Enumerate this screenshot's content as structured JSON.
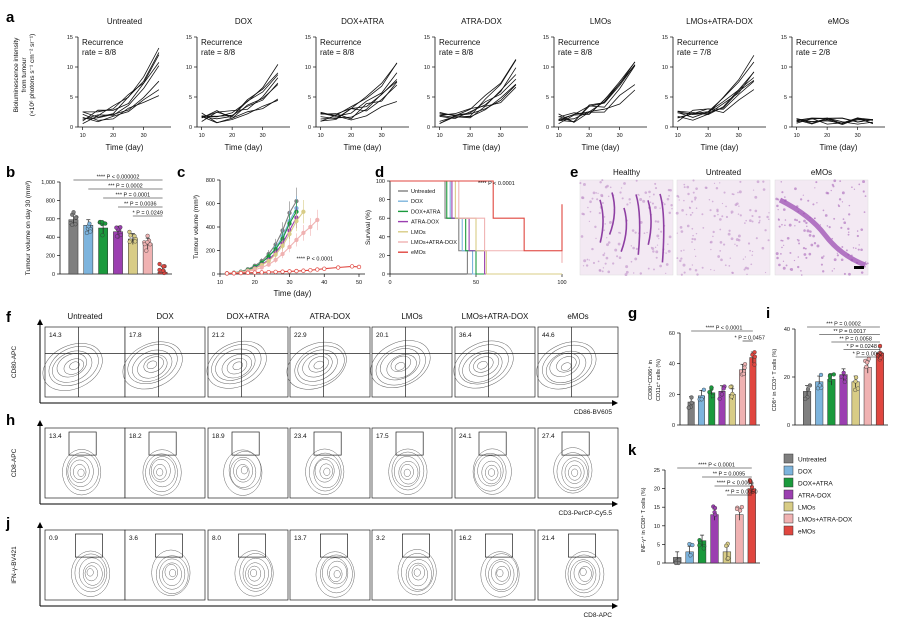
{
  "panels": {
    "a": "a",
    "b": "b",
    "c": "c",
    "d": "d",
    "e": "e",
    "f": "f",
    "g": "g",
    "h": "h",
    "i": "i",
    "j": "j",
    "k": "k"
  },
  "groups": [
    "Untreated",
    "DOX",
    "DOX+ATRA",
    "ATRA-DOX",
    "LMOs",
    "LMOs+ATRA-DOX",
    "eMOs"
  ],
  "group_colors": [
    "#7f7f7f",
    "#7db4dd",
    "#1a9a3c",
    "#9b3fb0",
    "#d8cc86",
    "#f0b2b2",
    "#e0463f"
  ],
  "panel_a": {
    "ylabel_1": "Bioluminescence intensity",
    "ylabel_2": "from tumour",
    "ylabel_3": "(×10⁶ photons s⁻¹ cm⁻² sr⁻¹)",
    "xlabel": "Time (day)",
    "recurrence_word": "Recurrence",
    "rates": [
      "rate = 8/8",
      "rate = 8/8",
      "rate = 8/8",
      "rate = 8/8",
      "rate = 8/8",
      "rate = 7/8",
      "rate = 2/8"
    ],
    "yticks": [
      "0",
      "5",
      "10",
      "15"
    ],
    "xticks": [
      "10",
      "20",
      "30"
    ]
  },
  "chart_data": [
    {
      "panel": "b",
      "type": "bar",
      "categories": [
        "Untreated",
        "DOX",
        "DOX+ATRA",
        "ATRA-DOX",
        "LMOs",
        "LMOs+ATRA-DOX",
        "eMOs"
      ],
      "values": [
        590,
        530,
        500,
        460,
        380,
        330,
        20
      ],
      "ylabel": "Tumour volume on day 30 (mm³)",
      "ylim": [
        0,
        1000
      ],
      "yticks": [
        "0",
        "200",
        "400",
        "600",
        "800",
        "1,000"
      ],
      "annotations": [
        "**** P < 0.000002",
        "*** P = 0.0002",
        "*** P = 0.0001",
        "** P = 0.0036",
        "* P = 0.0249"
      ]
    },
    {
      "panel": "c",
      "type": "line",
      "xlabel": "Time (day)",
      "ylabel": "Tumour volume (mm³)",
      "xlim": [
        10,
        50
      ],
      "ylim": [
        0,
        800
      ],
      "xticks": [
        "10",
        "20",
        "30",
        "40",
        "50"
      ],
      "yticks": [
        "0",
        "200",
        "400",
        "600",
        "800"
      ],
      "x": [
        12,
        14,
        16,
        18,
        20,
        22,
        24,
        26,
        28,
        30,
        32,
        34,
        36,
        38,
        40,
        44,
        48,
        50
      ],
      "series": [
        {
          "values": [
            5,
            10,
            20,
            40,
            70,
            110,
            170,
            250,
            370,
            520,
            620,
            null,
            null,
            null,
            null,
            null,
            null,
            null
          ]
        },
        {
          "values": [
            5,
            10,
            18,
            35,
            60,
            95,
            150,
            220,
            320,
            450,
            560,
            null,
            null,
            null,
            null,
            null,
            null,
            null
          ]
        },
        {
          "values": [
            5,
            10,
            18,
            35,
            60,
            95,
            150,
            210,
            300,
            430,
            530,
            null,
            null,
            null,
            null,
            null,
            null,
            null
          ]
        },
        {
          "values": [
            5,
            9,
            15,
            30,
            50,
            80,
            120,
            180,
            260,
            370,
            480,
            null,
            null,
            null,
            null,
            null,
            null,
            null
          ]
        },
        {
          "values": [
            5,
            9,
            15,
            28,
            45,
            75,
            110,
            165,
            240,
            340,
            450,
            530,
            null,
            null,
            null,
            null,
            null,
            null
          ]
        },
        {
          "values": [
            5,
            8,
            12,
            22,
            35,
            55,
            80,
            120,
            170,
            230,
            290,
            350,
            400,
            460,
            null,
            null,
            null,
            null
          ]
        },
        {
          "values": [
            5,
            6,
            8,
            10,
            12,
            14,
            16,
            18,
            20,
            22,
            25,
            28,
            32,
            38,
            45,
            55,
            65,
            60
          ]
        }
      ],
      "annotation": "**** P < 0.0001"
    },
    {
      "panel": "d",
      "type": "line",
      "xlabel": "",
      "ylabel": "Survival (%)",
      "xlim": [
        0,
        100
      ],
      "ylim": [
        0,
        100
      ],
      "xticks": [
        "0",
        "50",
        "100"
      ],
      "yticks": [
        "0",
        "20",
        "40",
        "60",
        "80",
        "100"
      ],
      "legend": [
        "Untreated",
        "DOX",
        "DOX+ATRA",
        "ATRA-DOX",
        "LMOs",
        "LMOs+ATRA-DOX",
        "eMOs"
      ],
      "annotation": "**** P < 0.0001"
    },
    {
      "panel": "g",
      "type": "bar",
      "categories": [
        "Untreated",
        "DOX",
        "DOX+ATRA",
        "ATRA-DOX",
        "LMOs",
        "LMOs+ATRA-DOX",
        "eMOs"
      ],
      "values": [
        15,
        19,
        21,
        22,
        20,
        36,
        44
      ],
      "ylabel_1": "CD80⁺CD86⁺ in",
      "ylabel_2": "CD11c⁺ cells (%)",
      "ylim": [
        0,
        60
      ],
      "yticks": [
        "0",
        "20",
        "40",
        "60"
      ],
      "annotations": [
        "**** P < 0.0001",
        "* P = 0.0457"
      ]
    },
    {
      "panel": "i",
      "type": "bar",
      "categories": [
        "Untreated",
        "DOX",
        "DOX+ATRA",
        "ATRA-DOX",
        "LMOs",
        "LMOs+ATRA-DOX",
        "eMOs"
      ],
      "values": [
        14,
        18,
        19,
        21,
        18,
        24,
        30
      ],
      "ylabel": "CD8⁺ in CD3⁺ T cells (%)",
      "ylim": [
        0,
        40
      ],
      "yticks": [
        "0",
        "20",
        "40"
      ],
      "annotations": [
        "*** P = 0.0002",
        "** P = 0.0017",
        "** P = 0.0058",
        "* P = 0.0248",
        "* P = 0.0062"
      ]
    },
    {
      "panel": "k",
      "type": "bar",
      "categories": [
        "Untreated",
        "DOX",
        "DOX+ATRA",
        "ATRA-DOX",
        "LMOs",
        "LMOs+ATRA-DOX",
        "eMOs"
      ],
      "values": [
        1.5,
        3,
        6,
        13,
        3,
        13,
        20
      ],
      "ylabel": "INF-γ⁺ in CD8⁺ T cells (%)",
      "ylim": [
        0,
        25
      ],
      "yticks": [
        "0",
        "5",
        "10",
        "15",
        "20",
        "25"
      ],
      "annotations": [
        "**** P < 0.0001",
        "** P = 0.0095",
        "**** P < 0.0001",
        "** P = 0.0050"
      ]
    }
  ],
  "panel_e": {
    "titles": [
      "Healthy",
      "Untreated",
      "eMOs"
    ]
  },
  "panel_f": {
    "ylabel": "CD80-APC",
    "xlabel": "CD86-BV605",
    "values": [
      "14.3",
      "17.8",
      "21.2",
      "22.9",
      "20.1",
      "36.4",
      "44.6"
    ]
  },
  "panel_h": {
    "ylabel": "CD8-APC",
    "xlabel": "CD3-PerCP-Cy5.5",
    "values": [
      "13.4",
      "18.2",
      "18.9",
      "23.4",
      "17.5",
      "24.1",
      "27.4"
    ]
  },
  "panel_j": {
    "ylabel": "IFN-γ-BV421",
    "xlabel": "CD8-APC",
    "values": [
      "0.9",
      "3.6",
      "8.0",
      "13.7",
      "3.2",
      "16.2",
      "21.4"
    ]
  },
  "legend": [
    "Untreated",
    "DOX",
    "DOX+ATRA",
    "ATRA-DOX",
    "LMOs",
    "LMOs+ATRA-DOX",
    "eMOs"
  ]
}
